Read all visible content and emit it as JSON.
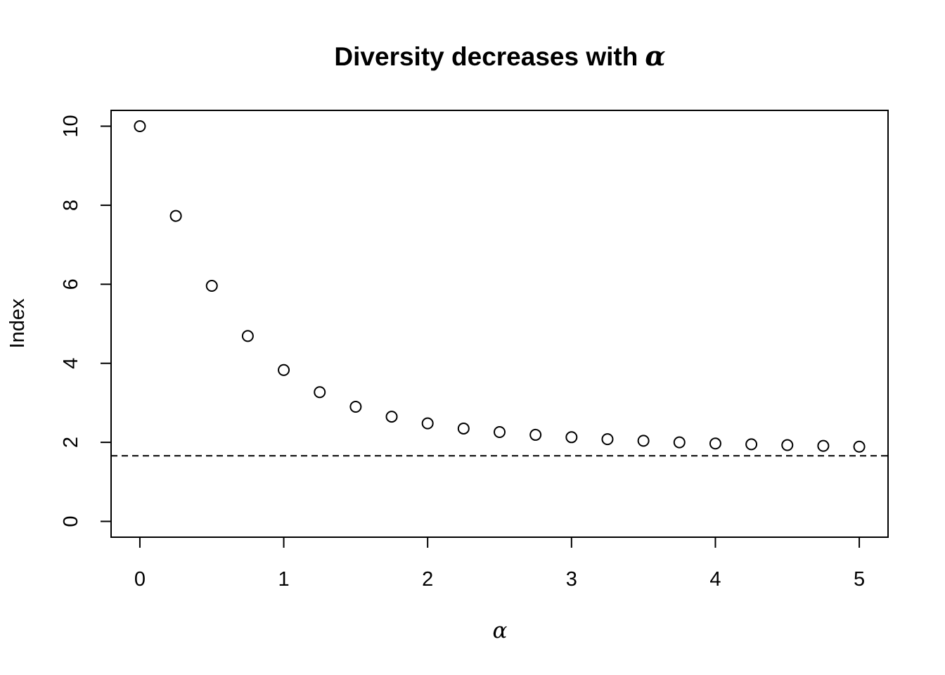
{
  "chart_data": {
    "type": "scatter",
    "title": "Diversity decreases with",
    "title_symbol": "α",
    "xlabel": "α",
    "ylabel": "Index",
    "xlim": [
      -0.2,
      5.2
    ],
    "ylim": [
      -0.4,
      10.4
    ],
    "x_ticks": [
      0,
      1,
      2,
      3,
      4,
      5
    ],
    "x_tick_labels": [
      "0",
      "1",
      "2",
      "3",
      "4",
      "5"
    ],
    "y_ticks": [
      0,
      2,
      4,
      6,
      8,
      10
    ],
    "y_tick_labels": [
      "0",
      "2",
      "4",
      "6",
      "8",
      "10"
    ],
    "grid": false,
    "marker": "open-circle",
    "series": [
      {
        "x": [
          0,
          0.25,
          0.5,
          0.75,
          1,
          1.25,
          1.5,
          1.75,
          2,
          2.25,
          2.5,
          2.75,
          3,
          3.25,
          3.5,
          3.75,
          4,
          4.25,
          4.5,
          4.75,
          5
        ],
        "y": [
          10,
          7.73,
          5.96,
          4.69,
          3.83,
          3.27,
          2.9,
          2.65,
          2.48,
          2.35,
          2.26,
          2.19,
          2.13,
          2.08,
          2.04,
          2.0,
          1.97,
          1.95,
          1.93,
          1.91,
          1.89
        ]
      }
    ],
    "reference_line": {
      "y": 1.66,
      "style": "dashed"
    },
    "colors": {
      "points": "#000000",
      "line": "#000000"
    }
  }
}
